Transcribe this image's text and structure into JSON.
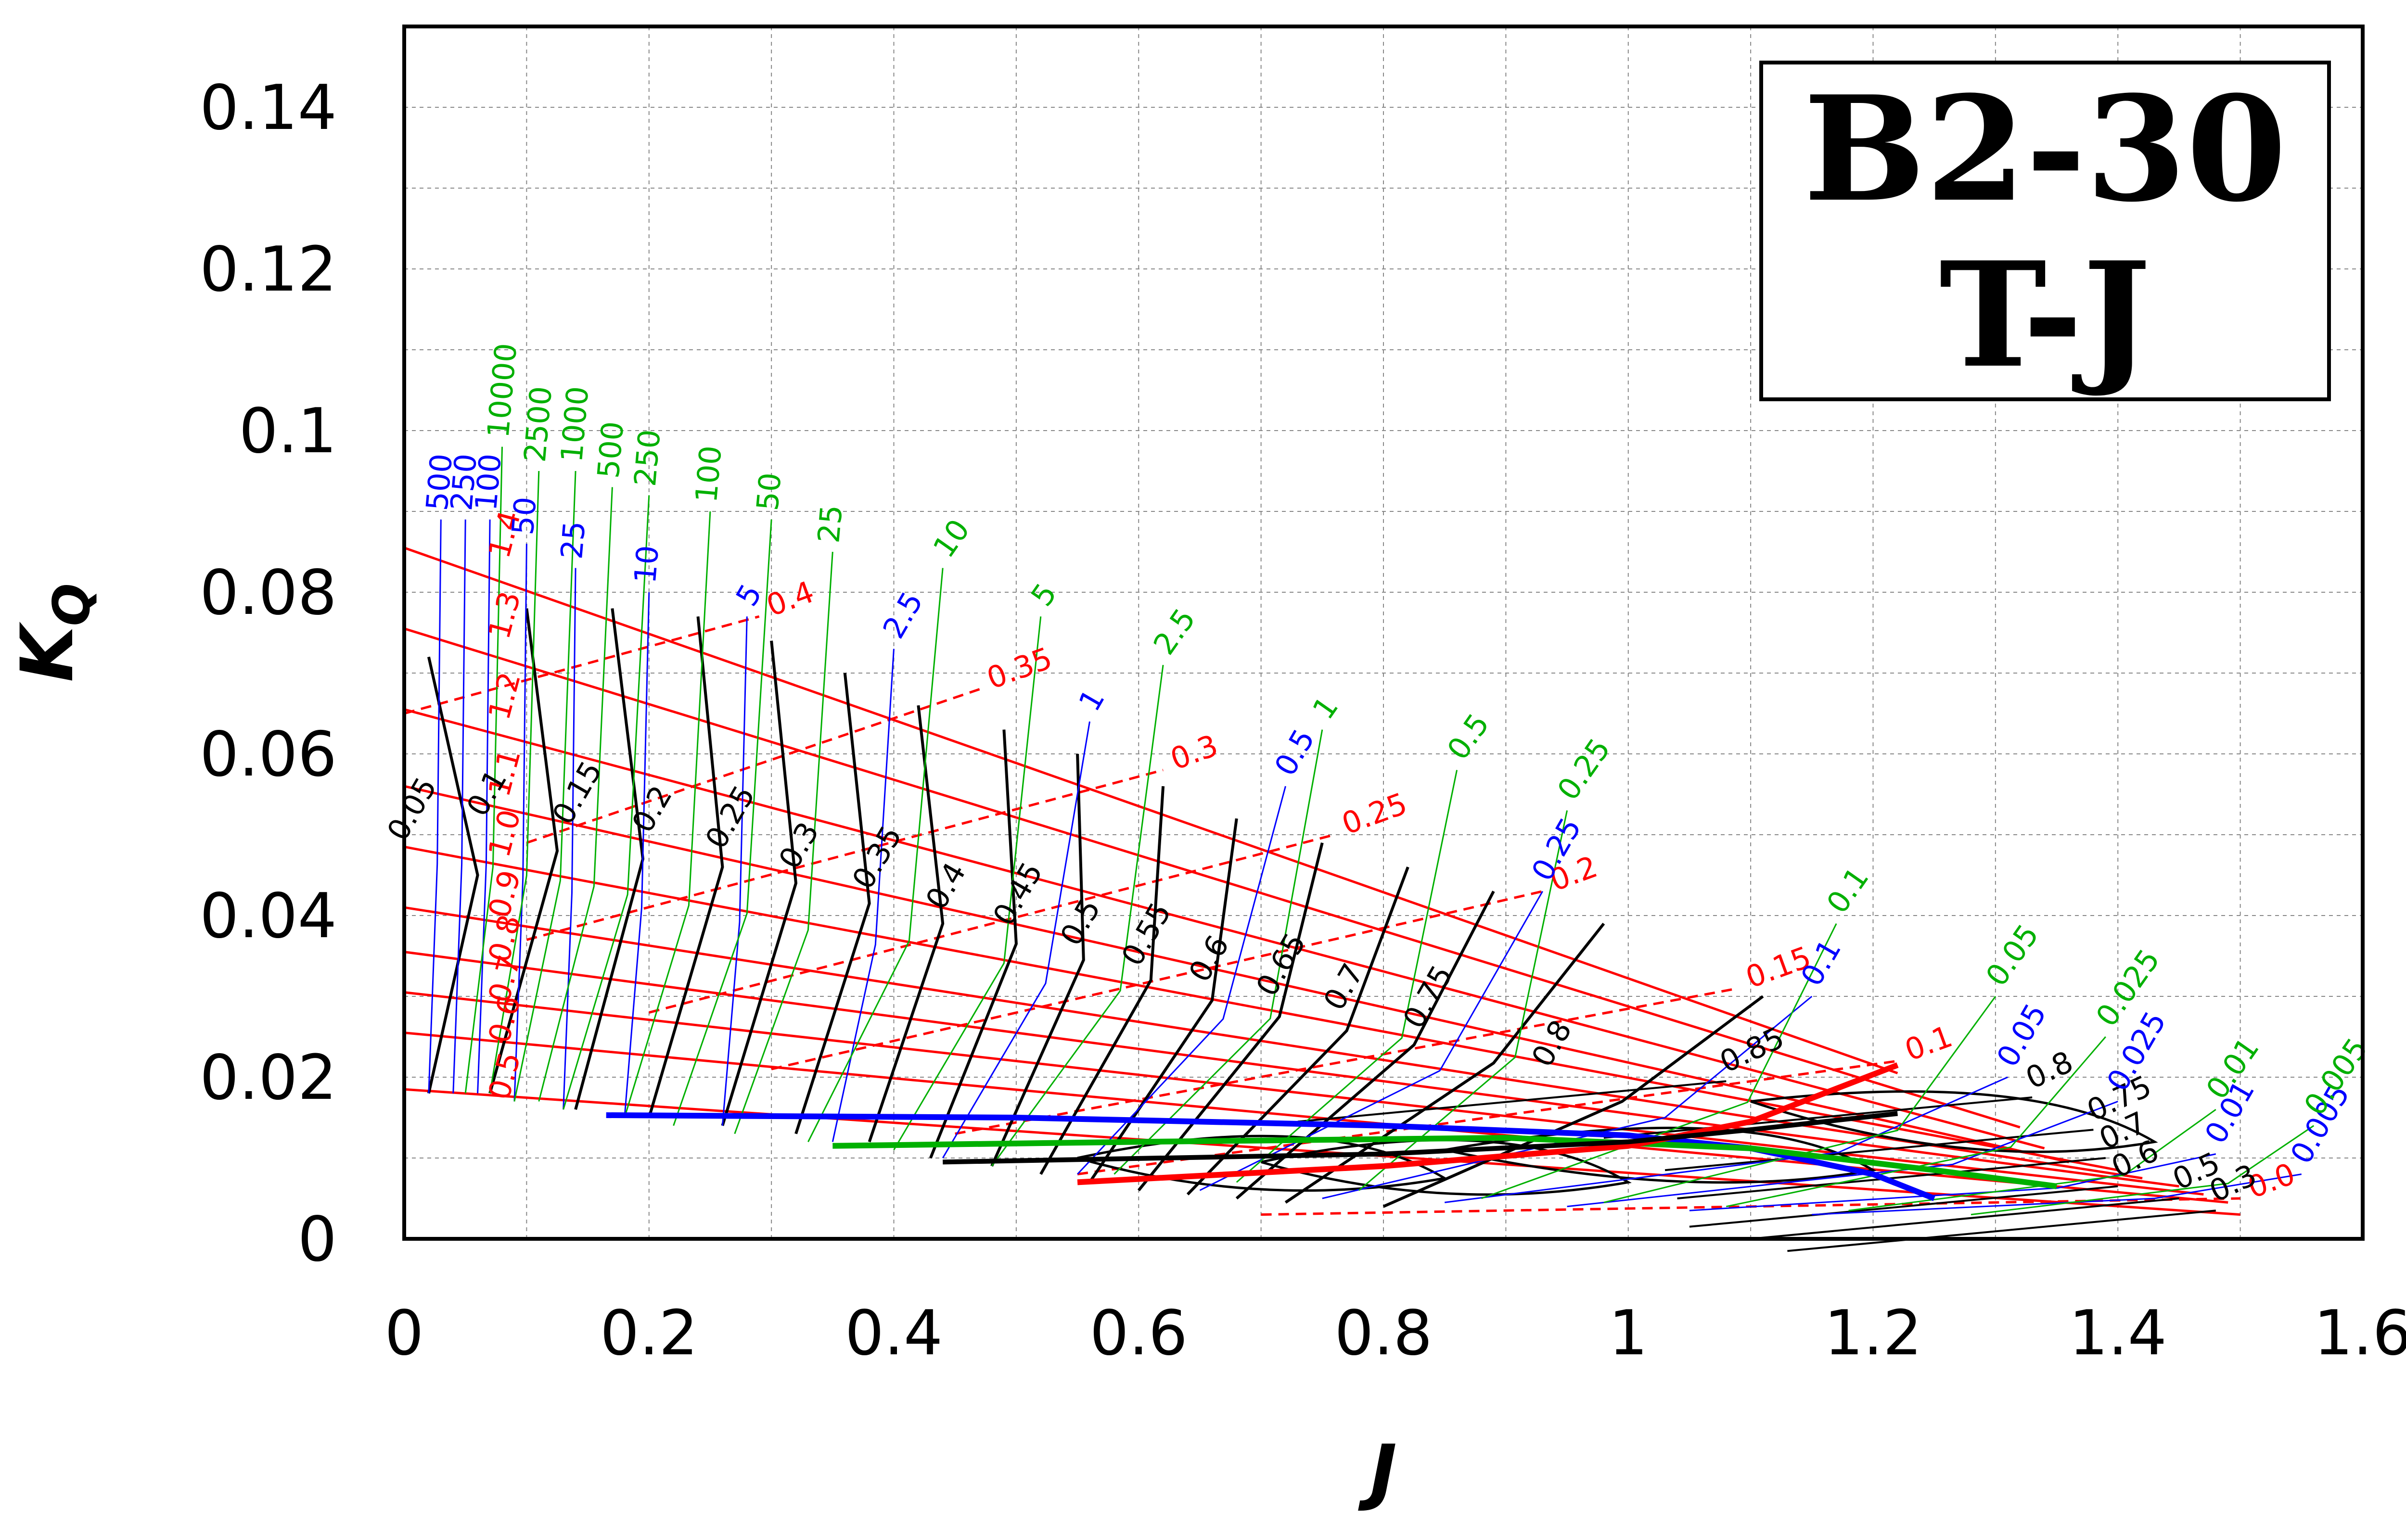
{
  "colors": {
    "pitch_lines": "#ff0000",
    "efficiency": "#000000",
    "bp_sigma": "#0000ff",
    "bp_delta": "#00b000",
    "grid": "#888888"
  },
  "chart_data": {
    "type": "line",
    "title": "B2-30",
    "subtitle": "T-J",
    "xlabel": "J",
    "ylabel": "K_Q",
    "xlim": [
      0,
      1.6
    ],
    "ylim": [
      0,
      0.15
    ],
    "xticks": [
      "0",
      "0.2",
      "0.4",
      "0.6",
      "0.8",
      "1",
      "1.2",
      "1.4",
      "1.6"
    ],
    "yticks": [
      "0",
      "0.02",
      "0.04",
      "0.06",
      "0.08",
      "0.1",
      "0.12",
      "0.14"
    ],
    "grid": true,
    "pitch_solid": [
      {
        "label": "1.4",
        "points": [
          [
            0,
            0.0855
          ],
          [
            1.22,
            0.0205
          ]
        ]
      },
      {
        "label": "1.3",
        "points": [
          [
            0,
            0.0755
          ],
          [
            1.32,
            0.0138
          ]
        ]
      },
      {
        "label": "1.2",
        "points": [
          [
            0,
            0.0655
          ],
          [
            1.34,
            0.0112
          ]
        ]
      },
      {
        "label": "1.1",
        "points": [
          [
            0,
            0.056
          ],
          [
            1.36,
            0.0095
          ]
        ]
      },
      {
        "label": "1.0",
        "points": [
          [
            0,
            0.0485
          ],
          [
            1.4,
            0.0085
          ]
        ]
      },
      {
        "label": "0.9",
        "points": [
          [
            0,
            0.041
          ],
          [
            1.42,
            0.0075
          ]
        ]
      },
      {
        "label": "0.8",
        "points": [
          [
            0,
            0.0355
          ],
          [
            1.45,
            0.0065
          ]
        ]
      },
      {
        "label": "0.7",
        "points": [
          [
            0,
            0.0305
          ],
          [
            1.47,
            0.0055
          ]
        ]
      },
      {
        "label": "0.6",
        "points": [
          [
            0,
            0.0255
          ],
          [
            1.49,
            0.0045
          ]
        ]
      },
      {
        "label": "0.5",
        "points": [
          [
            0,
            0.0185
          ],
          [
            1.5,
            0.003
          ]
        ]
      }
    ],
    "pitch_dashed": [
      {
        "label": "0.4",
        "points": [
          [
            0,
            0.065
          ],
          [
            0.29,
            0.077
          ]
        ]
      },
      {
        "label": "0.35",
        "points": [
          [
            0.1,
            0.049
          ],
          [
            0.47,
            0.068
          ]
        ]
      },
      {
        "label": "0.3",
        "points": [
          [
            0.1,
            0.037
          ],
          [
            0.62,
            0.058
          ]
        ]
      },
      {
        "label": "0.25",
        "points": [
          [
            0.2,
            0.028
          ],
          [
            0.76,
            0.05
          ]
        ]
      },
      {
        "label": "0.2",
        "points": [
          [
            0.3,
            0.021
          ],
          [
            0.93,
            0.043
          ]
        ]
      },
      {
        "label": "0.15",
        "points": [
          [
            0.45,
            0.013
          ],
          [
            1.09,
            0.031
          ]
        ]
      },
      {
        "label": "0.1",
        "points": [
          [
            0.55,
            0.008
          ],
          [
            1.22,
            0.022
          ]
        ]
      },
      {
        "label": "0.0",
        "points": [
          [
            0.7,
            0.003
          ],
          [
            1.5,
            0.005
          ]
        ]
      }
    ],
    "efficiency_labels": [
      "0.05",
      "0.1",
      "0.15",
      "0.2",
      "0.25",
      "0.3",
      "0.35",
      "0.4",
      "0.45",
      "0.5",
      "0.55",
      "0.6",
      "0.65",
      "0.7",
      "0.75",
      "0.8",
      "0.85",
      "0.8",
      "0.75",
      "0.7",
      "0.6",
      "0.5",
      "0.3"
    ],
    "bp_sigma_labels": [
      "500",
      "250",
      "100",
      "50",
      "25",
      "10",
      "5",
      "2.5",
      "1",
      "0.5",
      "0.25",
      "0.1",
      "0.05",
      "0.025",
      "0.01",
      "0.005"
    ],
    "bp_delta_labels": [
      "10000",
      "2500",
      "1000",
      "500",
      "250",
      "100",
      "50",
      "25",
      "10",
      "5",
      "2.5",
      "1",
      "0.5",
      "0.25",
      "0.1",
      "0.05",
      "0.025",
      "0.01",
      "0.005"
    ],
    "optimum_blue": [
      [
        0.165,
        0.0153
      ],
      [
        0.5,
        0.015
      ],
      [
        0.8,
        0.014
      ],
      [
        1.0,
        0.0128
      ],
      [
        1.1,
        0.0112
      ],
      [
        1.2,
        0.008
      ],
      [
        1.25,
        0.005
      ]
    ],
    "optimum_green": [
      [
        0.35,
        0.0115
      ],
      [
        0.6,
        0.012
      ],
      [
        0.9,
        0.0125
      ],
      [
        1.1,
        0.0112
      ],
      [
        1.25,
        0.0085
      ],
      [
        1.35,
        0.0065
      ]
    ],
    "optimum_red": [
      [
        0.55,
        0.007
      ],
      [
        0.8,
        0.009
      ],
      [
        1.0,
        0.0115
      ],
      [
        1.1,
        0.0145
      ],
      [
        1.22,
        0.0215
      ]
    ],
    "optimum_black": [
      [
        0.44,
        0.0095
      ],
      [
        0.8,
        0.0105
      ],
      [
        1.0,
        0.012
      ],
      [
        1.1,
        0.0135
      ],
      [
        1.22,
        0.0155
      ]
    ]
  }
}
